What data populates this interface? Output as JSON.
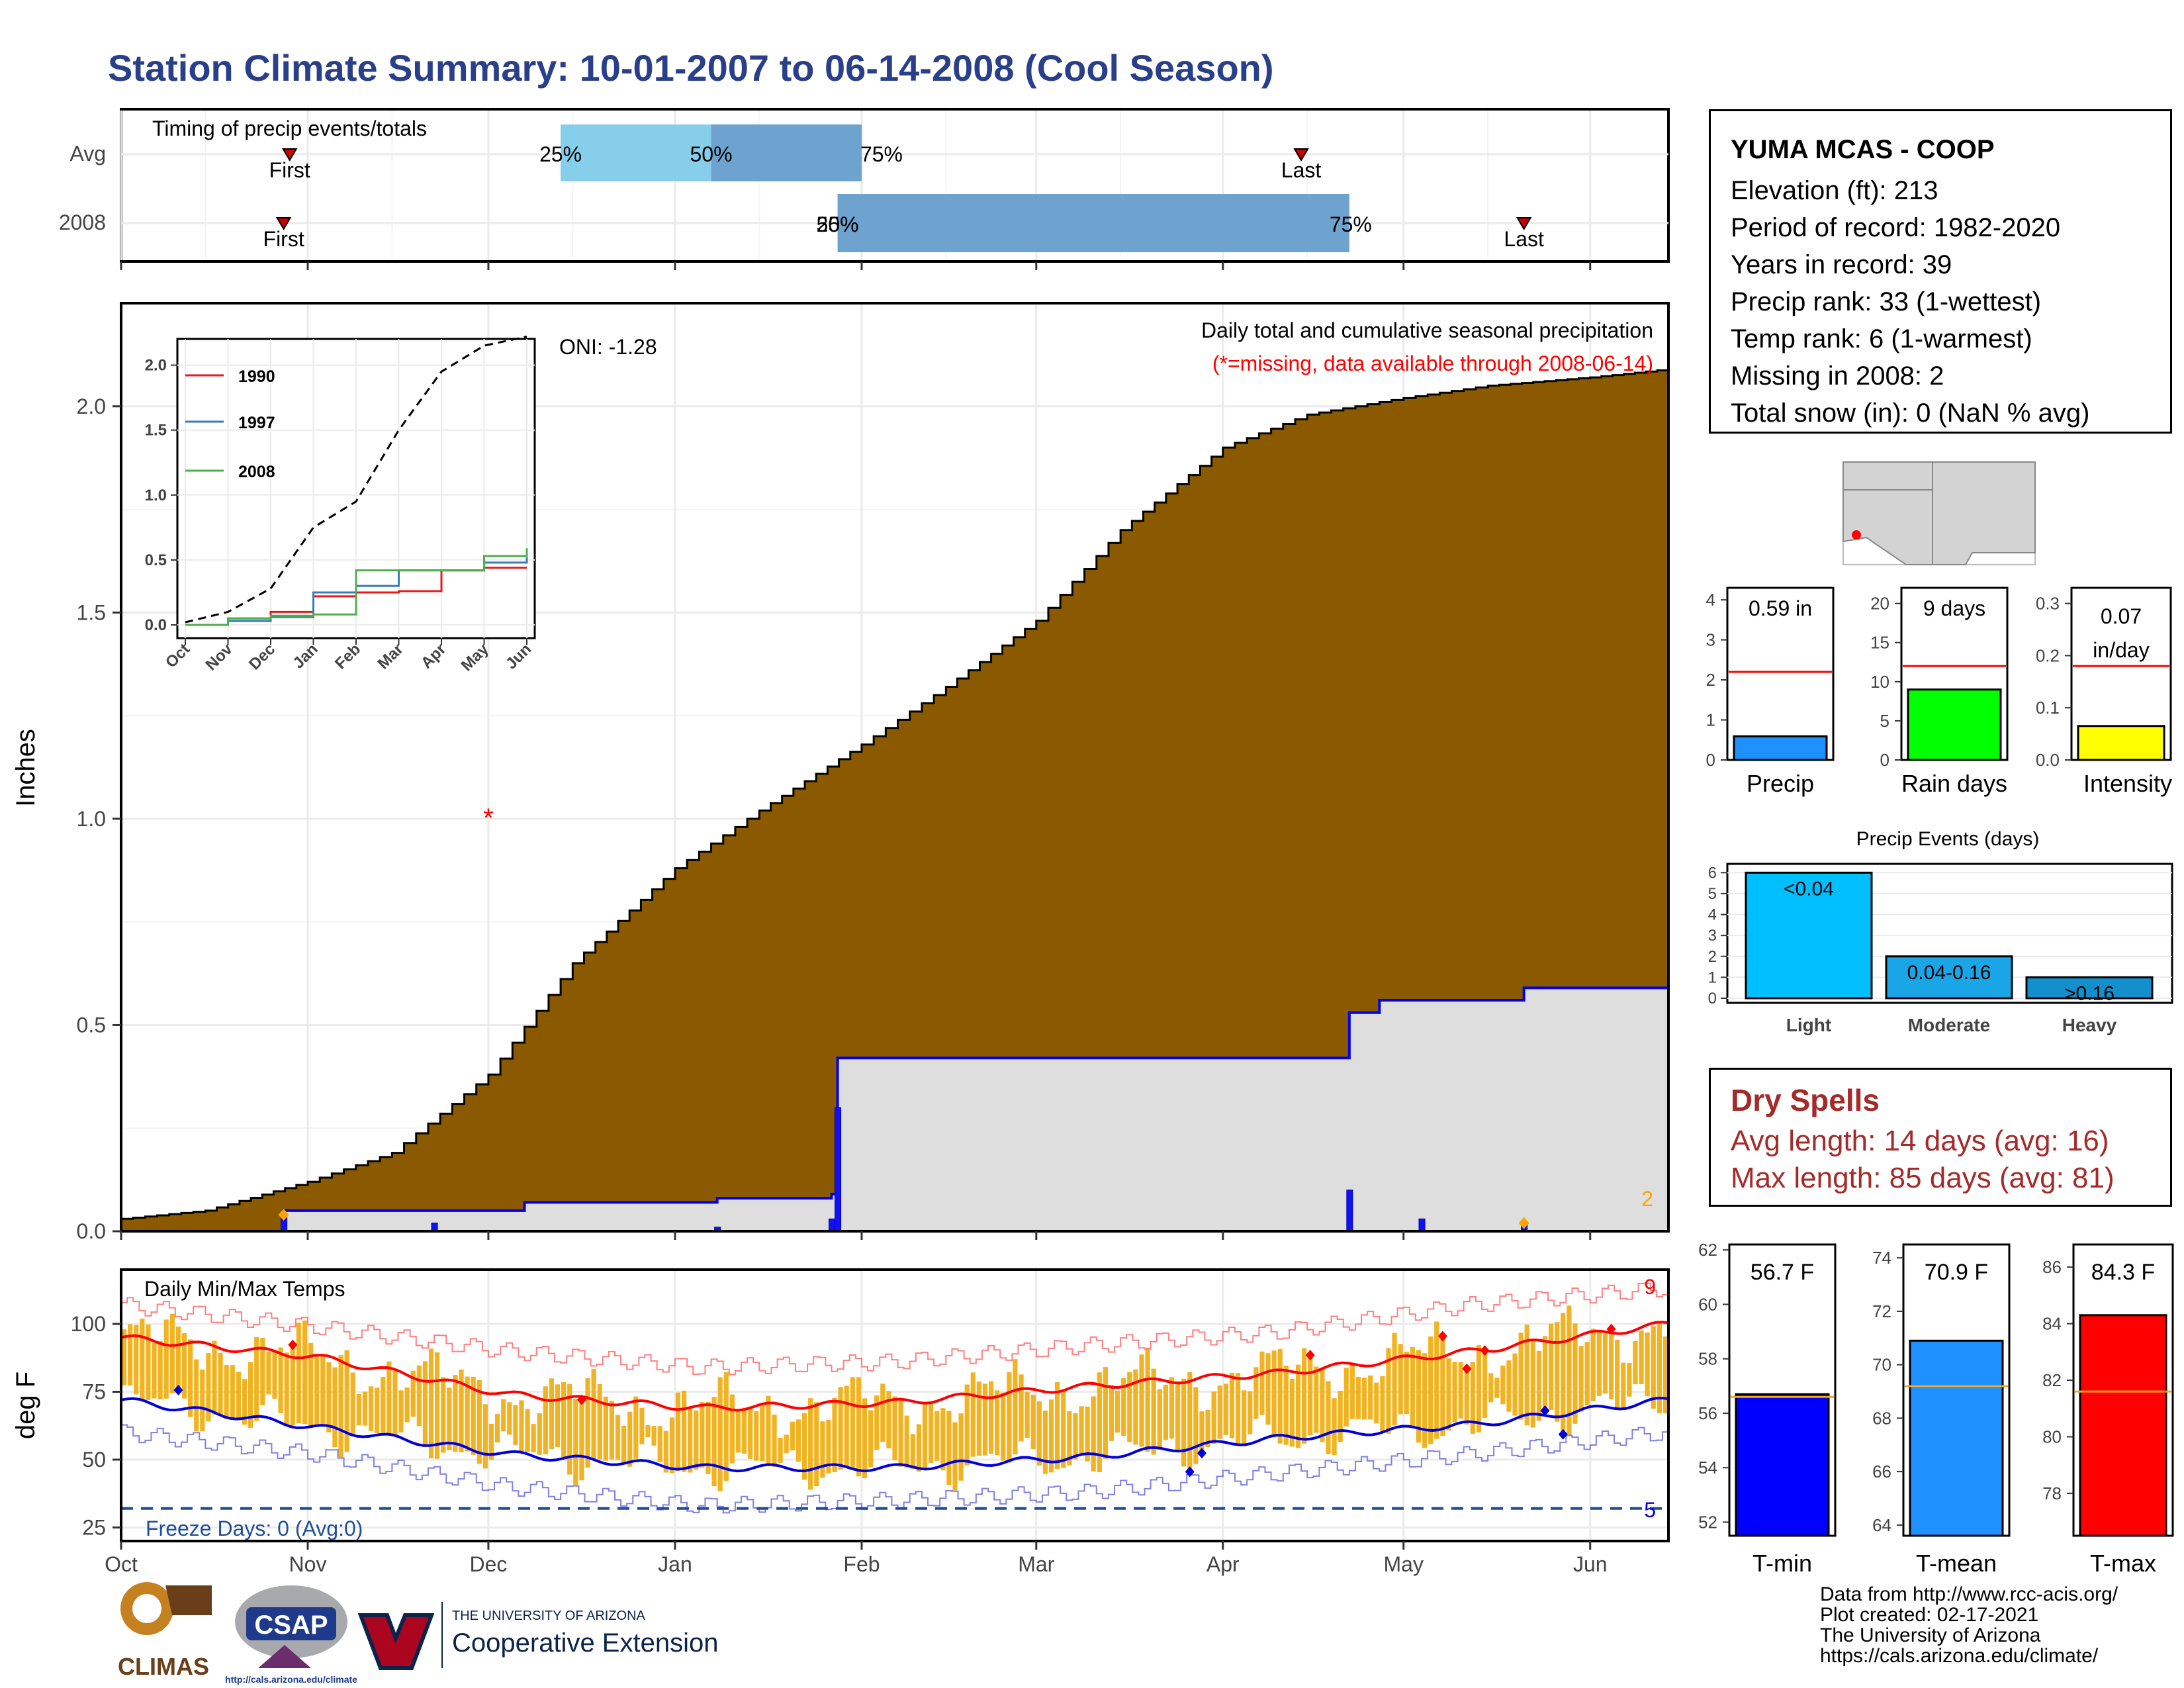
{
  "title": "Station Climate Summary: 10-01-2007 to 06-14-2008 (Cool Season)",
  "timing": {
    "label": "Timing of precip events/totals",
    "rows": [
      "Avg",
      "2008"
    ],
    "avg": {
      "first": "First",
      "last": "Last",
      "p25": "25%",
      "p50": "50%",
      "p75": "75%"
    },
    "y2008": {
      "first": "First",
      "last": "Last",
      "p25": "25%",
      "p50": "50%",
      "p75": "75%"
    }
  },
  "main": {
    "ylabel": "Inches",
    "oni": "ONI: -1.28",
    "note1": "Daily total and cumulative seasonal precipitation",
    "note2": "(*=missing, data available through 2008-06-14)",
    "missing_count": "2",
    "y_ticks": [
      "0.0",
      "0.5",
      "1.0",
      "1.5",
      "2.0"
    ],
    "x_ticks": [
      "Oct",
      "Nov",
      "Dec",
      "Jan",
      "Feb",
      "Mar",
      "Apr",
      "May",
      "Jun"
    ]
  },
  "inset": {
    "y_ticks": [
      "0.0",
      "0.5",
      "1.0",
      "1.5",
      "2.0"
    ],
    "x_ticks": [
      "Oct",
      "Nov",
      "Dec",
      "Jan",
      "Feb",
      "Mar",
      "Apr",
      "May",
      "Jun"
    ],
    "legend": [
      "1990",
      "1997",
      "2008"
    ]
  },
  "temp": {
    "ylabel": "deg F",
    "label": "Daily Min/Max Temps",
    "freeze": "Freeze Days: 0 (Avg:0)",
    "count_max": "9",
    "count_min": "5",
    "y_ticks": [
      "25",
      "50",
      "75",
      "100"
    ]
  },
  "station": {
    "name": "YUMA MCAS - COOP",
    "elevation": "Elevation (ft): 213",
    "period": "Period of record: 1982-2020",
    "years": "Years in record: 39",
    "precip_rank": "Precip rank: 33 (1-wettest)",
    "temp_rank": "Temp rank: 6 (1-warmest)",
    "missing": "Missing in 2008: 2",
    "snow": "Total snow (in): 0 (NaN % avg)"
  },
  "mini_bars": {
    "precip": {
      "label": "Precip",
      "value_text": "0.59 in",
      "ticks": [
        "0",
        "1",
        "2",
        "3",
        "4"
      ]
    },
    "rain_days": {
      "label": "Rain days",
      "value_text": "9 days",
      "ticks": [
        "0",
        "5",
        "10",
        "15",
        "20"
      ]
    },
    "intensity": {
      "label": "Intensity",
      "value_text": "0.07",
      "value_text2": "in/day",
      "ticks": [
        "0.0",
        "0.1",
        "0.2",
        "0.3"
      ]
    }
  },
  "events": {
    "title": "Precip Events (days)",
    "ticks": [
      "0",
      "1",
      "2",
      "3",
      "4",
      "5",
      "6"
    ],
    "categories": [
      "Light",
      "Moderate",
      "Heavy"
    ],
    "labels": [
      "<0.04",
      "0.04-0.16",
      ">0.16"
    ]
  },
  "dry_spells": {
    "title": "Dry Spells",
    "avg": "Avg length: 14 days (avg: 16)",
    "max": "Max length: 85 days (avg: 81)"
  },
  "temp_bars": {
    "tmin": {
      "label": "T-min",
      "value_text": "56.7 F",
      "ticks": [
        "52",
        "54",
        "56",
        "58",
        "60",
        "62"
      ]
    },
    "tmean": {
      "label": "T-mean",
      "value_text": "70.9 F",
      "ticks": [
        "64",
        "66",
        "68",
        "70",
        "72",
        "74"
      ]
    },
    "tmax": {
      "label": "T-max",
      "value_text": "84.3 F",
      "ticks": [
        "78",
        "80",
        "82",
        "84",
        "86"
      ]
    }
  },
  "footer": {
    "line1": "Data from http://www.rcc-acis.org/",
    "line2": "Plot created: 02-17-2021",
    "line3": "The University of Arizona",
    "line4": "https://cals.arizona.edu/climate/",
    "climas": "CLIMAS",
    "csap": "CSAP",
    "csap_url": "http://cals.arizona.edu/climate",
    "ua_small": "THE UNIVERSITY OF ARIZONA",
    "ua_big": "Cooperative Extension"
  },
  "colors": {
    "title": "#2a3f8a",
    "cumulative_avg": "#8b5a00",
    "cumulative_2008": "#0000ee",
    "daily": "#1010ff",
    "temp_range": "#f0b323",
    "tmax_avg": "#ff0000",
    "tmin_avg": "#0000dd",
    "freeze": "#1f4e9a"
  },
  "chart_data": [
    {
      "type": "bar",
      "name": "timing",
      "categories": [
        "Avg",
        "2008"
      ],
      "avg": {
        "first": "2007-10-29",
        "p25": "2007-12-13",
        "p50": "2008-01-07",
        "p75": "2008-02-01",
        "last": "2008-04-14"
      },
      "y2008": {
        "first": "2007-10-28",
        "p25": "2008-01-28",
        "p50": "2008-01-28",
        "p75": "2008-04-22",
        "last": "2008-05-21"
      }
    },
    {
      "type": "area",
      "name": "precipitation",
      "ylim": [
        0,
        2.25
      ],
      "avg_cumulative": {
        "x": [
          "2007-10-01",
          "2007-10-15",
          "2007-11-01",
          "2007-11-15",
          "2007-12-01",
          "2007-12-15",
          "2008-01-01",
          "2008-01-15",
          "2008-02-01",
          "2008-02-15",
          "2008-03-01",
          "2008-03-15",
          "2008-04-01",
          "2008-04-15",
          "2008-05-01",
          "2008-05-15",
          "2008-06-01",
          "2008-06-14"
        ],
        "y": [
          0.03,
          0.05,
          0.12,
          0.19,
          0.38,
          0.65,
          0.88,
          1.02,
          1.18,
          1.32,
          1.48,
          1.7,
          1.9,
          1.98,
          2.02,
          2.05,
          2.07,
          2.09
        ]
      },
      "y2008_cumulative": {
        "x": [
          "2007-10-01",
          "2007-10-28",
          "2007-11-22",
          "2007-12-07",
          "2008-01-08",
          "2008-01-27",
          "2008-01-28",
          "2008-04-22",
          "2008-04-27",
          "2008-05-21",
          "2008-06-14"
        ],
        "y": [
          0.0,
          0.05,
          0.05,
          0.07,
          0.08,
          0.09,
          0.42,
          0.53,
          0.56,
          0.59,
          0.59
        ]
      },
      "daily": {
        "x": [
          "2007-10-28",
          "2007-11-22",
          "2008-01-08",
          "2008-01-27",
          "2008-01-28",
          "2008-04-22",
          "2008-05-04",
          "2008-05-21"
        ],
        "y": [
          0.04,
          0.02,
          0.01,
          0.03,
          0.3,
          0.1,
          0.03,
          0.02
        ]
      },
      "missing": {
        "x": [
          "2007-12-01"
        ],
        "y": [
          1.0
        ]
      },
      "inset_avg_cumulative": {
        "x": [
          "Oct",
          "Nov",
          "Dec",
          "Jan",
          "Feb",
          "Mar",
          "Apr",
          "May",
          "Jun"
        ],
        "y": [
          0.02,
          0.1,
          0.28,
          0.75,
          0.95,
          1.5,
          1.95,
          2.15,
          2.22
        ]
      },
      "inset_series": [
        {
          "name": "1990",
          "x": [
            "Oct",
            "Nov",
            "Dec",
            "Jan",
            "Feb",
            "Mar",
            "Apr",
            "May",
            "Jun"
          ],
          "y": [
            0.0,
            0.05,
            0.1,
            0.22,
            0.25,
            0.26,
            0.42,
            0.44,
            0.44
          ]
        },
        {
          "name": "1997",
          "x": [
            "Oct",
            "Nov",
            "Dec",
            "Jan",
            "Feb",
            "Mar",
            "Apr",
            "May",
            "Jun"
          ],
          "y": [
            0.0,
            0.03,
            0.06,
            0.25,
            0.3,
            0.42,
            0.42,
            0.48,
            0.52
          ]
        },
        {
          "name": "2008",
          "x": [
            "Oct",
            "Nov",
            "Dec",
            "Jan",
            "Feb",
            "Mar",
            "Apr",
            "May",
            "Jun"
          ],
          "y": [
            0.0,
            0.05,
            0.07,
            0.08,
            0.42,
            0.42,
            0.42,
            0.53,
            0.59
          ]
        }
      ]
    },
    {
      "type": "bar",
      "name": "daily_temps",
      "ylim": [
        20,
        120
      ],
      "tmax_avg": {
        "x": [
          "Oct",
          "Nov",
          "Dec",
          "Jan",
          "Feb",
          "Mar",
          "Apr",
          "May",
          "Jun"
        ],
        "y": [
          95,
          88,
          74,
          69,
          71,
          77,
          82,
          90,
          100
        ]
      },
      "tmin_avg": {
        "x": [
          "Oct",
          "Nov",
          "Dec",
          "Jan",
          "Feb",
          "Mar",
          "Apr",
          "May",
          "Jun"
        ],
        "y": [
          72,
          62,
          52,
          47,
          47,
          51,
          58,
          63,
          72
        ]
      },
      "tmax_record": {
        "x": [
          "Oct",
          "Nov",
          "Dec",
          "Jan",
          "Feb",
          "Mar",
          "Apr",
          "May",
          "Jun"
        ],
        "y": [
          107,
          99,
          90,
          84,
          86,
          92,
          97,
          107,
          113
        ]
      },
      "tmin_record": {
        "x": [
          "Oct",
          "Nov",
          "Dec",
          "Jan",
          "Feb",
          "Mar",
          "Apr",
          "May",
          "Jun"
        ],
        "y": [
          60,
          52,
          40,
          33,
          35,
          38,
          45,
          52,
          60
        ]
      },
      "freeze_line": 32
    },
    {
      "type": "bar",
      "name": "precip_total",
      "categories": [
        "Precip"
      ],
      "values": [
        0.59
      ],
      "avg": 2.2,
      "ylim": [
        0,
        4.3
      ]
    },
    {
      "type": "bar",
      "name": "rain_days",
      "categories": [
        "Rain days"
      ],
      "values": [
        9
      ],
      "avg": 12,
      "ylim": [
        0,
        22
      ]
    },
    {
      "type": "bar",
      "name": "intensity",
      "categories": [
        "Intensity"
      ],
      "values": [
        0.065
      ],
      "avg": 0.18,
      "ylim": [
        0,
        0.33
      ]
    },
    {
      "type": "bar",
      "name": "precip_events",
      "categories": [
        "Light",
        "Moderate",
        "Heavy"
      ],
      "values": [
        6,
        2,
        1
      ],
      "ylim": [
        0,
        6.2
      ]
    },
    {
      "type": "bar",
      "name": "tmin",
      "categories": [
        "T-min"
      ],
      "values": [
        56.7
      ],
      "avg": 56.6,
      "ylim": [
        51.5,
        62.2
      ]
    },
    {
      "type": "bar",
      "name": "tmean",
      "categories": [
        "T-mean"
      ],
      "values": [
        70.9
      ],
      "avg": 69.2,
      "ylim": [
        63.6,
        74.5
      ]
    },
    {
      "type": "bar",
      "name": "tmax",
      "categories": [
        "T-max"
      ],
      "values": [
        84.3
      ],
      "avg": 81.6,
      "ylim": [
        76.5,
        86.8
      ]
    }
  ]
}
